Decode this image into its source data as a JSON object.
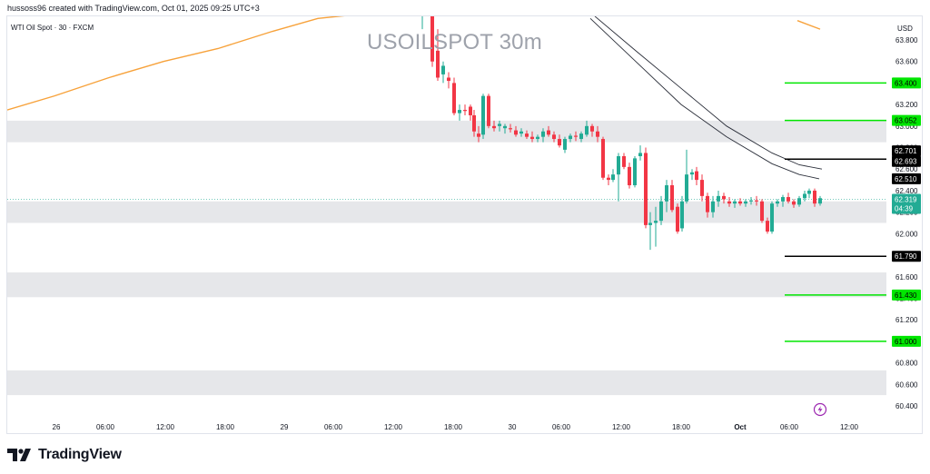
{
  "attribution": "hussoss96 created with TradingView.com, Oct 01, 2025 09:25 UTC+3",
  "symbol": "WTI Oil Spot · 30 · FXCM",
  "watermark": "USOILSPOT 30m",
  "currency": "USD",
  "brand": "TradingView",
  "colors": {
    "up": "#22ab94",
    "down": "#f23645",
    "ma_orange": "#f7a23b",
    "channel": "#2a2e39",
    "level_green": "#00e600",
    "level_black": "#000000",
    "zone": "#e6e7ea"
  },
  "chart_data": {
    "type": "candlestick",
    "title": "USOILSPOT 30m",
    "ylim": [
      60.35,
      63.95
    ],
    "y_ticks": [
      "63.800",
      "63.600",
      "63.400",
      "63.200",
      "63.000",
      "62.800",
      "62.600",
      "62.400",
      "62.200",
      "62.000",
      "61.800",
      "61.600",
      "61.400",
      "61.200",
      "61.000",
      "60.800",
      "60.600",
      "60.400"
    ],
    "x_ticks": [
      "26",
      "06:00",
      "12:00",
      "18:00",
      "29",
      "06:00",
      "12:00",
      "18:00",
      "30",
      "06:00",
      "12:00",
      "18:00",
      "Oct",
      "06:00",
      "12:00"
    ],
    "zones": [
      [
        62.85,
        63.05
      ],
      [
        62.1,
        62.3
      ],
      [
        61.41,
        61.64
      ],
      [
        60.5,
        60.73
      ]
    ],
    "price_levels": [
      {
        "label": "63.400",
        "value": 63.4,
        "color": "#00e600",
        "text_color": "#000000"
      },
      {
        "label": "63.052",
        "value": 63.052,
        "color": "#00e600",
        "text_color": "#000000"
      },
      {
        "label": "62.701",
        "value": 62.701,
        "color": "#000000",
        "text_color": "#ffffff"
      },
      {
        "label": "62.693",
        "value": 62.693,
        "color": "#000000",
        "text_color": "#ffffff"
      },
      {
        "label": "62.510",
        "value": 62.51,
        "color": "#000000",
        "text_color": "#ffffff"
      },
      {
        "label": "61.790",
        "value": 61.79,
        "color": "#000000",
        "text_color": "#ffffff"
      },
      {
        "label": "61.430",
        "value": 61.43,
        "color": "#00e600",
        "text_color": "#000000"
      },
      {
        "label": "61.000",
        "value": 61.0,
        "color": "#00e600",
        "text_color": "#000000"
      }
    ],
    "current_price": {
      "label": "62.319",
      "countdown": "04:39",
      "value": 62.319,
      "color": "#22ab94"
    },
    "ma_orange": [
      [
        8,
        63.15
      ],
      [
        60,
        63.28
      ],
      [
        120,
        63.45
      ],
      [
        180,
        63.6
      ],
      [
        240,
        63.72
      ],
      [
        300,
        63.88
      ],
      [
        350,
        64.0
      ],
      [
        467,
        64.1
      ]
    ],
    "ma_orange_tail": [
      [
        878,
        63.98
      ],
      [
        903,
        63.9
      ]
    ],
    "channel_upper": [
      [
        655,
        64.02
      ],
      [
        700,
        63.7
      ],
      [
        750,
        63.35
      ],
      [
        800,
        63.0
      ],
      [
        850,
        62.75
      ],
      [
        880,
        62.64
      ],
      [
        905,
        62.6
      ]
    ],
    "channel_lower": [
      [
        650,
        64.0
      ],
      [
        700,
        63.6
      ],
      [
        750,
        63.2
      ],
      [
        800,
        62.9
      ],
      [
        850,
        62.65
      ],
      [
        880,
        62.55
      ],
      [
        902,
        62.51
      ]
    ],
    "candles": [
      {
        "x": 465,
        "o": 64.05,
        "h": 64.1,
        "l": 63.9,
        "c": 64.05
      },
      {
        "x": 476,
        "o": 64.05,
        "h": 64.1,
        "l": 63.55,
        "c": 63.6
      },
      {
        "x": 482,
        "o": 63.7,
        "h": 63.9,
        "l": 63.42,
        "c": 63.45
      },
      {
        "x": 488,
        "o": 63.48,
        "h": 63.6,
        "l": 63.4,
        "c": 63.56
      },
      {
        "x": 494,
        "o": 63.45,
        "h": 63.5,
        "l": 63.35,
        "c": 63.42
      },
      {
        "x": 500,
        "o": 63.4,
        "h": 63.45,
        "l": 63.1,
        "c": 63.12
      },
      {
        "x": 506,
        "o": 63.12,
        "h": 63.2,
        "l": 63.05,
        "c": 63.15
      },
      {
        "x": 512,
        "o": 63.15,
        "h": 63.2,
        "l": 63.1,
        "c": 63.14
      },
      {
        "x": 518,
        "o": 63.18,
        "h": 63.2,
        "l": 63.05,
        "c": 63.1
      },
      {
        "x": 522,
        "o": 63.1,
        "h": 63.15,
        "l": 62.9,
        "c": 62.95
      },
      {
        "x": 527,
        "o": 62.93,
        "h": 63.0,
        "l": 62.85,
        "c": 62.9
      },
      {
        "x": 532,
        "o": 62.92,
        "h": 63.3,
        "l": 62.88,
        "c": 63.28
      },
      {
        "x": 538,
        "o": 63.28,
        "h": 63.3,
        "l": 62.98,
        "c": 63.0
      },
      {
        "x": 544,
        "o": 63.0,
        "h": 63.05,
        "l": 62.95,
        "c": 62.98
      },
      {
        "x": 550,
        "o": 63.0,
        "h": 63.05,
        "l": 62.95,
        "c": 63.02
      },
      {
        "x": 556,
        "o": 62.98,
        "h": 63.02,
        "l": 62.93,
        "c": 63.0
      },
      {
        "x": 562,
        "o": 62.98,
        "h": 63.02,
        "l": 62.94,
        "c": 62.97
      },
      {
        "x": 568,
        "o": 62.96,
        "h": 63.0,
        "l": 62.9,
        "c": 62.92
      },
      {
        "x": 574,
        "o": 62.93,
        "h": 62.98,
        "l": 62.9,
        "c": 62.95
      },
      {
        "x": 580,
        "o": 62.93,
        "h": 62.96,
        "l": 62.88,
        "c": 62.9
      },
      {
        "x": 586,
        "o": 62.9,
        "h": 62.95,
        "l": 62.85,
        "c": 62.88
      },
      {
        "x": 592,
        "o": 62.88,
        "h": 62.92,
        "l": 62.85,
        "c": 62.9
      },
      {
        "x": 598,
        "o": 62.9,
        "h": 62.98,
        "l": 62.85,
        "c": 62.95
      },
      {
        "x": 604,
        "o": 62.96,
        "h": 63.0,
        "l": 62.9,
        "c": 62.92
      },
      {
        "x": 610,
        "o": 62.92,
        "h": 62.95,
        "l": 62.85,
        "c": 62.88
      },
      {
        "x": 616,
        "o": 62.88,
        "h": 62.92,
        "l": 62.8,
        "c": 62.82
      },
      {
        "x": 622,
        "o": 62.78,
        "h": 62.9,
        "l": 62.75,
        "c": 62.88
      },
      {
        "x": 628,
        "o": 62.88,
        "h": 62.93,
        "l": 62.85,
        "c": 62.91
      },
      {
        "x": 634,
        "o": 62.91,
        "h": 62.95,
        "l": 62.86,
        "c": 62.9
      },
      {
        "x": 640,
        "o": 62.88,
        "h": 62.95,
        "l": 62.85,
        "c": 62.93
      },
      {
        "x": 646,
        "o": 62.92,
        "h": 63.05,
        "l": 62.9,
        "c": 63.0
      },
      {
        "x": 652,
        "o": 63.0,
        "h": 63.02,
        "l": 62.9,
        "c": 62.95
      },
      {
        "x": 658,
        "o": 62.95,
        "h": 63.0,
        "l": 62.85,
        "c": 62.9
      },
      {
        "x": 664,
        "o": 62.88,
        "h": 62.9,
        "l": 62.5,
        "c": 62.52
      },
      {
        "x": 670,
        "o": 62.52,
        "h": 62.55,
        "l": 62.45,
        "c": 62.5
      },
      {
        "x": 675,
        "o": 62.5,
        "h": 62.6,
        "l": 62.48,
        "c": 62.55
      },
      {
        "x": 681,
        "o": 62.55,
        "h": 62.75,
        "l": 62.3,
        "c": 62.72
      },
      {
        "x": 687,
        "o": 62.72,
        "h": 62.75,
        "l": 62.6,
        "c": 62.62
      },
      {
        "x": 693,
        "o": 62.62,
        "h": 62.66,
        "l": 62.42,
        "c": 62.45
      },
      {
        "x": 699,
        "o": 62.45,
        "h": 62.72,
        "l": 62.43,
        "c": 62.7
      },
      {
        "x": 705,
        "o": 62.72,
        "h": 62.82,
        "l": 62.68,
        "c": 62.75
      },
      {
        "x": 711,
        "o": 62.75,
        "h": 62.8,
        "l": 62.05,
        "c": 62.08
      },
      {
        "x": 716,
        "o": 62.08,
        "h": 62.2,
        "l": 61.85,
        "c": 62.1
      },
      {
        "x": 722,
        "o": 62.1,
        "h": 62.25,
        "l": 61.88,
        "c": 62.12
      },
      {
        "x": 728,
        "o": 62.12,
        "h": 62.35,
        "l": 62.08,
        "c": 62.3
      },
      {
        "x": 734,
        "o": 62.3,
        "h": 62.5,
        "l": 62.2,
        "c": 62.45
      },
      {
        "x": 740,
        "o": 62.45,
        "h": 62.5,
        "l": 62.2,
        "c": 62.22
      },
      {
        "x": 746,
        "o": 62.25,
        "h": 62.28,
        "l": 62.0,
        "c": 62.02
      },
      {
        "x": 751,
        "o": 62.05,
        "h": 62.35,
        "l": 62.02,
        "c": 62.3
      },
      {
        "x": 756,
        "o": 62.3,
        "h": 62.78,
        "l": 62.28,
        "c": 62.55
      },
      {
        "x": 762,
        "o": 62.55,
        "h": 62.6,
        "l": 62.5,
        "c": 62.57
      },
      {
        "x": 767,
        "o": 62.58,
        "h": 62.62,
        "l": 62.45,
        "c": 62.5
      },
      {
        "x": 773,
        "o": 62.5,
        "h": 62.55,
        "l": 62.3,
        "c": 62.35
      },
      {
        "x": 779,
        "o": 62.35,
        "h": 62.38,
        "l": 62.15,
        "c": 62.2
      },
      {
        "x": 785,
        "o": 62.2,
        "h": 62.35,
        "l": 62.15,
        "c": 62.3
      },
      {
        "x": 791,
        "o": 62.3,
        "h": 62.4,
        "l": 62.25,
        "c": 62.35
      },
      {
        "x": 797,
        "o": 62.35,
        "h": 62.38,
        "l": 62.28,
        "c": 62.32
      },
      {
        "x": 803,
        "o": 62.3,
        "h": 62.34,
        "l": 62.25,
        "c": 62.28
      },
      {
        "x": 809,
        "o": 62.28,
        "h": 62.32,
        "l": 62.24,
        "c": 62.3
      },
      {
        "x": 815,
        "o": 62.3,
        "h": 62.33,
        "l": 62.26,
        "c": 62.28
      },
      {
        "x": 821,
        "o": 62.28,
        "h": 62.32,
        "l": 62.25,
        "c": 62.3
      },
      {
        "x": 827,
        "o": 62.3,
        "h": 62.34,
        "l": 62.27,
        "c": 62.31
      },
      {
        "x": 833,
        "o": 62.31,
        "h": 62.35,
        "l": 62.26,
        "c": 62.3
      },
      {
        "x": 839,
        "o": 62.3,
        "h": 62.32,
        "l": 62.1,
        "c": 62.12
      },
      {
        "x": 845,
        "o": 62.12,
        "h": 62.15,
        "l": 62.0,
        "c": 62.02
      },
      {
        "x": 850,
        "o": 62.02,
        "h": 62.3,
        "l": 62.0,
        "c": 62.28
      },
      {
        "x": 856,
        "o": 62.28,
        "h": 62.32,
        "l": 62.25,
        "c": 62.3
      },
      {
        "x": 862,
        "o": 62.3,
        "h": 62.36,
        "l": 62.25,
        "c": 62.34
      },
      {
        "x": 868,
        "o": 62.34,
        "h": 62.38,
        "l": 62.28,
        "c": 62.3
      },
      {
        "x": 874,
        "o": 62.3,
        "h": 62.32,
        "l": 62.24,
        "c": 62.27
      },
      {
        "x": 880,
        "o": 62.27,
        "h": 62.35,
        "l": 62.25,
        "c": 62.33
      },
      {
        "x": 886,
        "o": 62.33,
        "h": 62.4,
        "l": 62.3,
        "c": 62.37
      },
      {
        "x": 891,
        "o": 62.37,
        "h": 62.42,
        "l": 62.33,
        "c": 62.4
      },
      {
        "x": 897,
        "o": 62.4,
        "h": 62.42,
        "l": 62.25,
        "c": 62.28
      },
      {
        "x": 903,
        "o": 62.28,
        "h": 62.35,
        "l": 62.26,
        "c": 62.33
      }
    ]
  }
}
